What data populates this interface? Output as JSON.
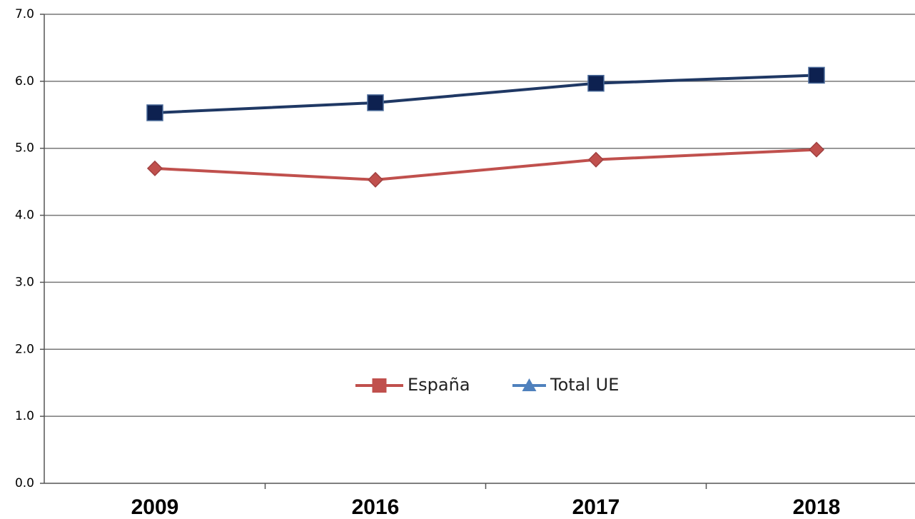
{
  "chart_data": {
    "type": "line",
    "categories": [
      "2009",
      "2016",
      "2017",
      "2018"
    ],
    "series": [
      {
        "name": "España",
        "color": "#c0504d",
        "values": [
          4.7,
          4.53,
          4.83,
          4.98
        ]
      },
      {
        "name": "Total UE",
        "color": "#1f3864",
        "values": [
          5.53,
          5.68,
          5.97,
          6.09
        ]
      }
    ],
    "ylim": [
      0,
      7
    ],
    "yticks": [
      {
        "value": 0,
        "label": "0.0"
      },
      {
        "value": 1,
        "label": "1.0"
      },
      {
        "value": 2,
        "label": "2.0"
      },
      {
        "value": 3,
        "label": "3.0"
      },
      {
        "value": 4,
        "label": "4.0"
      },
      {
        "value": 5,
        "label": "5.0"
      },
      {
        "value": 6,
        "label": "6.0"
      },
      {
        "value": 7,
        "label": "7.0"
      }
    ],
    "grid": true,
    "legend": "center"
  }
}
